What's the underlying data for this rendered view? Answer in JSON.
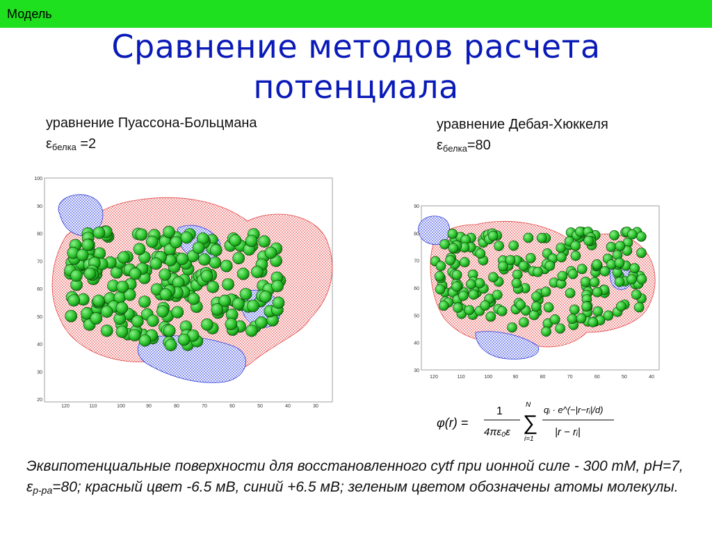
{
  "header": {
    "section_label": "Модель"
  },
  "title": {
    "line1": "Сравнение методов расчета",
    "line2": "потенциала"
  },
  "left_caption": {
    "line1": "уравнение Пуассона-Больцмана",
    "eps_symbol": "ε",
    "eps_sub": "белка",
    "eps_value": " =2"
  },
  "right_caption": {
    "line1": "уравнение Дебая-Хюккеля",
    "eps_symbol": "ε",
    "eps_sub": "белка",
    "eps_value": "=80"
  },
  "left_plot": {
    "y_ticks": [
      "100",
      "90",
      "80",
      "70",
      "60",
      "50",
      "40",
      "30",
      "20"
    ],
    "x_ticks": [
      "120",
      "110",
      "100",
      "90",
      "80",
      "70",
      "60",
      "50",
      "40",
      "30"
    ]
  },
  "right_plot": {
    "y_ticks": [
      "90",
      "80",
      "70",
      "60",
      "50",
      "40",
      "30"
    ],
    "x_ticks": [
      "120",
      "110",
      "100",
      "90",
      "80",
      "70",
      "60",
      "50",
      "40"
    ]
  },
  "formula": {
    "lhs": "φ(r) =",
    "numerator": "1",
    "denominator": "4πε₀ε",
    "sum_top": "N",
    "sum_bottom": "i=1",
    "term_num": "qᵢ · e^(−|r−rᵢ|/d)",
    "term_den": "|r − rᵢ|"
  },
  "footer": {
    "part1": "Эквипотенциальные поверхности для восстановленного cytf при ионной силе - 300 mM, pH=7, ε",
    "sub": "р-ра",
    "part2": "=80; красный цвет -6.5  мВ, синий +6.5  мВ; зеленым цветом обозначены атомы молекулы."
  },
  "colors": {
    "topbar": "#1ee01e",
    "title": "#0a1ab8",
    "negative_surface": "#e03030",
    "positive_surface": "#2a3ad8",
    "atoms": "#2dc42d"
  }
}
